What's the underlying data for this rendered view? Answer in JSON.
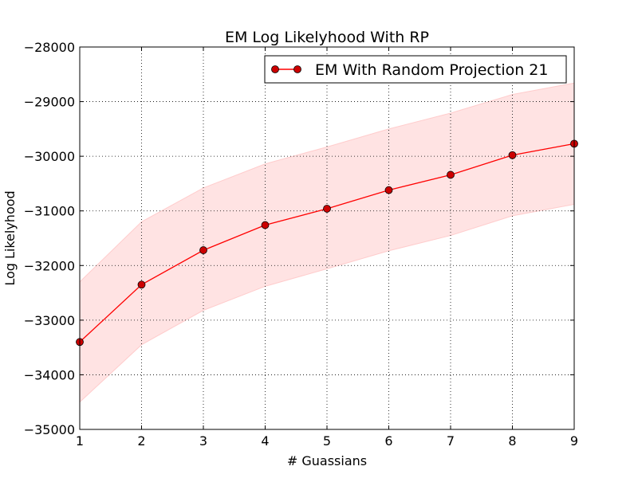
{
  "chart_data": {
    "type": "line",
    "title": "EM Log Likelyhood With RP",
    "xlabel": "# Guassians",
    "ylabel": "Log Likelyhood",
    "xlim": [
      1,
      9
    ],
    "ylim": [
      -35000,
      -28000
    ],
    "x_ticks": [
      1,
      2,
      3,
      4,
      5,
      6,
      7,
      8,
      9
    ],
    "y_ticks": [
      -35000,
      -34000,
      -33000,
      -32000,
      -31000,
      -30000,
      -29000,
      -28000
    ],
    "y_tick_labels": [
      "−35000",
      "−34000",
      "−33000",
      "−32000",
      "−31000",
      "−30000",
      "−29000",
      "−28000"
    ],
    "grid": true,
    "legend_position": "top-right",
    "series": [
      {
        "name": "EM With Random Projection 21",
        "color": "#ff0000",
        "marker_color": "#cc0000",
        "x": [
          1,
          2,
          3,
          4,
          5,
          6,
          7,
          8,
          9
        ],
        "y": [
          -33400,
          -32350,
          -31720,
          -31260,
          -30960,
          -30620,
          -30340,
          -29980,
          -29770
        ],
        "band_upper": [
          -32300,
          -31200,
          -30580,
          -30140,
          -29830,
          -29500,
          -29210,
          -28870,
          -28660
        ],
        "band_lower": [
          -34500,
          -33450,
          -32820,
          -32380,
          -32060,
          -31730,
          -31450,
          -31090,
          -30880
        ],
        "band_color": "#ffcccc"
      }
    ]
  }
}
